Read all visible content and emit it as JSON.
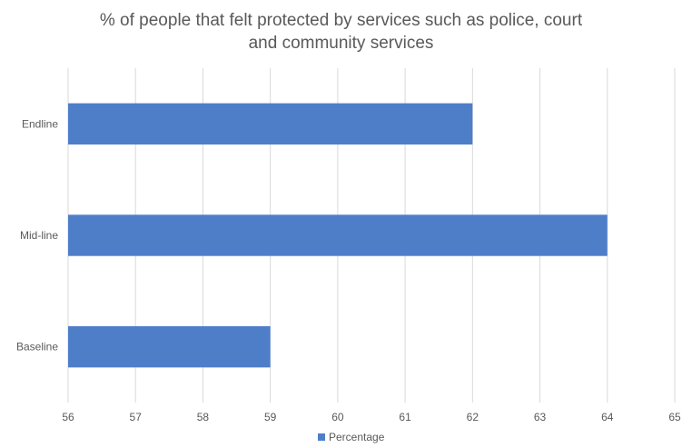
{
  "chart_data": {
    "type": "bar",
    "orientation": "horizontal",
    "title_lines": [
      "% of people that felt protected by services such as police, court",
      "and community  services"
    ],
    "categories": [
      "Endline",
      "Mid-line",
      "Baseline"
    ],
    "series": [
      {
        "name": "Percentage",
        "values": [
          62,
          64,
          59
        ],
        "color": "#4f7ec9"
      }
    ],
    "xlim": [
      56,
      65
    ],
    "xticks": [
      56,
      57,
      58,
      59,
      60,
      61,
      62,
      63,
      64,
      65
    ],
    "grid": true,
    "legend_position": "bottom"
  }
}
